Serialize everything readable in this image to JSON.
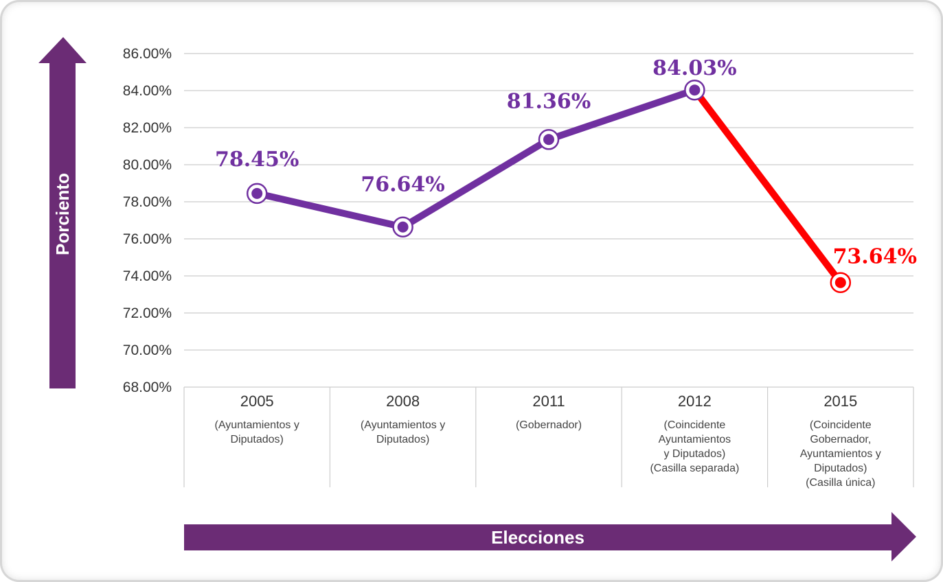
{
  "chart_data": {
    "type": "line",
    "title": "",
    "xlabel": "Elecciones",
    "ylabel": "Porciento",
    "ylim": [
      68,
      86
    ],
    "y_ticks": [
      "86.00%",
      "84.00%",
      "82.00%",
      "80.00%",
      "78.00%",
      "76.00%",
      "74.00%",
      "72.00%",
      "70.00%",
      "68.00%"
    ],
    "grid": true,
    "categories": [
      {
        "year": "2005",
        "desc": [
          "(Ayuntamientos y",
          "Diputados)"
        ]
      },
      {
        "year": "2008",
        "desc": [
          "(Ayuntamientos y",
          "Diputados)"
        ]
      },
      {
        "year": "2011",
        "desc": [
          "(Gobernador)"
        ]
      },
      {
        "year": "2012",
        "desc": [
          "(Coincidente",
          "Ayuntamientos",
          "y Diputados)",
          "(Casilla separada)"
        ]
      },
      {
        "year": "2015",
        "desc": [
          "(Coincidente",
          "Gobernador,",
          "Ayuntamientos y",
          "Diputados)",
          "(Casilla única)"
        ]
      }
    ],
    "values": [
      78.45,
      76.64,
      81.36,
      84.03,
      73.64
    ],
    "labels": [
      "78.45%",
      "76.64%",
      "81.36%",
      "84.03%",
      "73.64%"
    ],
    "colors": {
      "primary": "#7030a0",
      "decline": "#ff0000",
      "axis_arrow": "#6b2c75",
      "grid": "#cccccc"
    }
  }
}
